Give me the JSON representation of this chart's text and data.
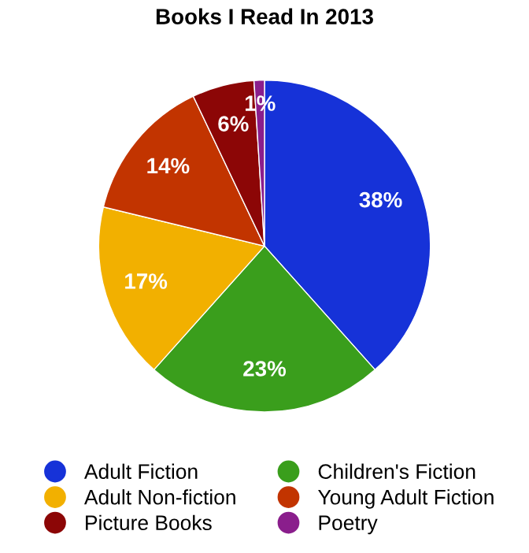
{
  "chart_data": {
    "type": "pie",
    "title": "Books I Read In 2013",
    "categories": [
      "Adult Fiction",
      "Children's Fiction",
      "Adult Non-fiction",
      "Young Adult Fiction",
      "Picture Books",
      "Poetry"
    ],
    "values": [
      38,
      23,
      17,
      14,
      6,
      1
    ],
    "value_labels": [
      "38%",
      "23%",
      "17%",
      "14%",
      "6%",
      "1%"
    ],
    "colors": [
      "#1632d8",
      "#3a9e1c",
      "#f2b000",
      "#c23400",
      "#8c0606",
      "#8a1e8c"
    ],
    "legend": "bottom"
  }
}
